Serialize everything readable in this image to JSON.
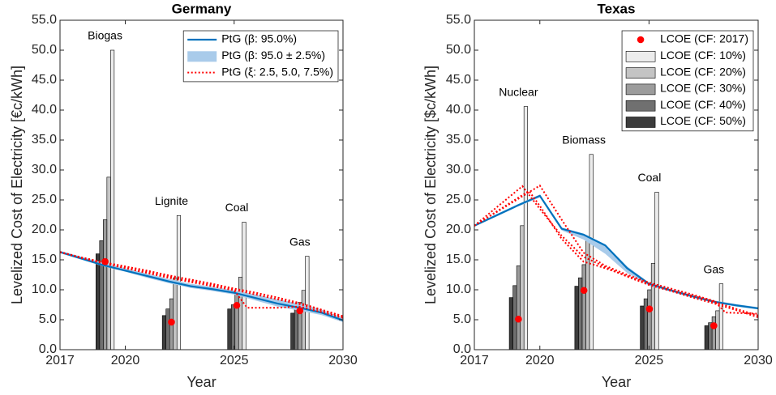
{
  "chart_data": [
    {
      "type": "combo",
      "title": "Germany",
      "xlabel": "Year",
      "ylabel": "Levelized Cost of Electricity [€c/kWh]",
      "xlim": [
        2017,
        2030
      ],
      "xticks": [
        2017,
        2020,
        2025,
        2030
      ],
      "ylim": [
        0,
        55
      ],
      "yticks": [
        {
          "value": 0,
          "label": "0.0"
        },
        {
          "value": 5,
          "label": "5.0"
        },
        {
          "value": 10,
          "label": "10.0"
        },
        {
          "value": 15,
          "label": "15.0"
        },
        {
          "value": 20,
          "label": "20.0"
        },
        {
          "value": 25,
          "label": "25.0"
        },
        {
          "value": 30,
          "label": "30.0"
        },
        {
          "value": 35,
          "label": "35.0"
        },
        {
          "value": 40,
          "label": "40.0"
        },
        {
          "value": 45,
          "label": "45.0"
        },
        {
          "value": 50,
          "label": "50.0"
        },
        {
          "value": 55,
          "label": "55.0"
        }
      ],
      "legend": "upper right",
      "groups": {
        "labels": [
          "Biogas",
          "Lignite",
          "Coal",
          "Gas"
        ],
        "x": [
          2018.65,
          2021.7,
          2024.7,
          2027.6
        ]
      },
      "dots": {
        "color": "#ff0000",
        "values": [
          14.7,
          4.6,
          7.4,
          6.5
        ]
      },
      "bar_series": [
        {
          "color": "#ececec",
          "values": [
            50.0,
            22.4,
            21.3,
            15.6
          ]
        },
        {
          "color": "#c4c4c4",
          "values": [
            28.8,
            12.0,
            12.1,
            9.9
          ]
        },
        {
          "color": "#9c9c9c",
          "values": [
            21.7,
            8.5,
            9.5,
            7.9
          ]
        },
        {
          "color": "#707070",
          "values": [
            18.2,
            6.8,
            7.5,
            7.0
          ]
        },
        {
          "color": "#3c3c3c",
          "values": [
            16.0,
            5.7,
            6.8,
            6.1
          ]
        }
      ],
      "line": {
        "name": "PtG (β: 95.0%)",
        "color": "#0072bd",
        "x": [
          2017,
          2018,
          2019,
          2020,
          2021,
          2022,
          2023,
          2024,
          2025,
          2026,
          2027,
          2028,
          2029,
          2030
        ],
        "values": [
          16.3,
          15.2,
          14.1,
          13.2,
          12.3,
          11.4,
          10.6,
          10.1,
          9.5,
          8.6,
          7.7,
          7.0,
          6.2,
          4.9
        ]
      },
      "band": {
        "name": "PtG (β: 95.0 ± 2.5%)",
        "color": "#a9cbea",
        "x": [
          2017,
          2018,
          2019,
          2020,
          2021,
          2022,
          2023,
          2024,
          2025,
          2026,
          2027,
          2028,
          2029,
          2030
        ],
        "lower": [
          16.1,
          15.0,
          13.9,
          13.0,
          12.0,
          11.1,
          10.3,
          9.8,
          9.2,
          8.2,
          7.2,
          6.5,
          5.8,
          4.6
        ],
        "upper": [
          16.5,
          15.5,
          14.5,
          13.6,
          12.7,
          11.8,
          11.0,
          10.5,
          9.9,
          9.2,
          8.4,
          7.7,
          6.7,
          5.3
        ]
      },
      "scenarios": {
        "name": "PtG (ξ: 2.5, 5.0, 7.5%)",
        "color": "#ff0000",
        "lines": [
          {
            "x": [
              2017,
              2018,
              2019,
              2020,
              2021,
              2022,
              2023,
              2024,
              2025,
              2026,
              2027,
              2028,
              2029,
              2030
            ],
            "values": [
              16.3,
              15.4,
              14.6,
              13.9,
              13.2,
              12.4,
              11.7,
              11.0,
              10.2,
              9.5,
              8.7,
              7.8,
              6.7,
              5.6
            ]
          },
          {
            "x": [
              2017,
              2018,
              2019,
              2020,
              2021,
              2022,
              2023,
              2024,
              2025,
              2026,
              2027,
              2028,
              2029,
              2030
            ],
            "values": [
              16.3,
              15.3,
              14.5,
              13.8,
              13.0,
              12.2,
              11.5,
              10.8,
              10.0,
              9.2,
              8.4,
              7.6,
              6.6,
              5.5
            ]
          },
          {
            "x": [
              2017,
              2018,
              2019,
              2020,
              2021,
              2022,
              2023,
              2024,
              2025,
              2025.6,
              2026,
              2027,
              2028,
              2029,
              2030
            ],
            "values": [
              16.3,
              15.3,
              14.4,
              13.6,
              12.8,
              12.0,
              11.3,
              10.6,
              9.9,
              7.0,
              7.0,
              7.0,
              7.2,
              6.3,
              5.3
            ]
          }
        ]
      }
    },
    {
      "type": "combo",
      "title": "Texas",
      "xlabel": "Year",
      "ylabel": "Levelized Cost of Electricity [$c/kWh]",
      "xlim": [
        2017,
        2030
      ],
      "xticks": [
        2017,
        2020,
        2025,
        2030
      ],
      "ylim": [
        0,
        55
      ],
      "yticks": [
        {
          "value": 0,
          "label": "0.0"
        },
        {
          "value": 5,
          "label": "5.0"
        },
        {
          "value": 10,
          "label": "10.0"
        },
        {
          "value": 15,
          "label": "15.0"
        },
        {
          "value": 20,
          "label": "20.0"
        },
        {
          "value": 25,
          "label": "25.0"
        },
        {
          "value": 30,
          "label": "30.0"
        },
        {
          "value": 35,
          "label": "35.0"
        },
        {
          "value": 40,
          "label": "40.0"
        },
        {
          "value": 45,
          "label": "45.0"
        },
        {
          "value": 50,
          "label": "50.0"
        },
        {
          "value": 55,
          "label": "55.0"
        }
      ],
      "legend": "upper right",
      "groups": {
        "labels": [
          "Nuclear",
          "Biomass",
          "Coal",
          "Gas"
        ],
        "x": [
          2018.6,
          2021.6,
          2024.6,
          2027.55
        ]
      },
      "dots": {
        "name": "LCOE (CF: 2017)",
        "color": "#ff0000",
        "values": [
          5.1,
          9.9,
          6.8,
          4.0
        ]
      },
      "bar_series": [
        {
          "name": "LCOE (CF: 10%)",
          "color": "#ececec",
          "values": [
            40.6,
            32.6,
            26.3,
            11.0
          ]
        },
        {
          "name": "LCOE (CF: 20%)",
          "color": "#c4c4c4",
          "values": [
            20.7,
            18.9,
            14.4,
            6.5
          ]
        },
        {
          "name": "LCOE (CF: 30%)",
          "color": "#9c9c9c",
          "values": [
            14.0,
            14.2,
            10.0,
            5.5
          ]
        },
        {
          "name": "LCOE (CF: 40%)",
          "color": "#707070",
          "values": [
            10.7,
            12.0,
            8.5,
            4.5
          ]
        },
        {
          "name": "LCOE (CF: 50%)",
          "color": "#3c3c3c",
          "values": [
            8.7,
            10.6,
            7.3,
            4.0
          ]
        }
      ],
      "line": {
        "color": "#0072bd",
        "x": [
          2017,
          2018,
          2019,
          2020,
          2021,
          2022,
          2023,
          2024,
          2025,
          2026,
          2027,
          2028,
          2029,
          2030
        ],
        "values": [
          20.7,
          22.4,
          24.1,
          25.7,
          20.2,
          19.2,
          17.4,
          13.6,
          11.0,
          9.9,
          8.9,
          8.0,
          7.4,
          6.9
        ]
      },
      "band": {
        "color": "#a9cbea",
        "x": [
          2017,
          2018,
          2019,
          2020,
          2021,
          2022,
          2023,
          2024,
          2025,
          2026,
          2027,
          2028,
          2029,
          2030
        ],
        "lower": [
          20.6,
          22.2,
          23.9,
          25.4,
          19.9,
          18.4,
          16.0,
          12.8,
          10.7,
          9.7,
          8.7,
          7.8,
          7.2,
          6.7
        ],
        "upper": [
          20.8,
          22.6,
          24.3,
          25.9,
          20.4,
          19.4,
          17.6,
          13.9,
          11.2,
          10.1,
          9.1,
          8.2,
          7.6,
          7.1
        ]
      },
      "scenarios": {
        "color": "#ff0000",
        "lines": [
          {
            "x": [
              2017,
              2019.2,
              2020,
              2021,
              2022,
              2023,
              2024,
              2025,
              2026,
              2027,
              2028,
              2029,
              2030
            ],
            "values": [
              20.7,
              27.3,
              23.5,
              19.0,
              15.5,
              13.8,
              12.2,
              10.8,
              9.8,
              8.7,
              7.7,
              6.6,
              5.4
            ]
          },
          {
            "x": [
              2017,
              2019.5,
              2020,
              2021,
              2022,
              2023,
              2024,
              2025,
              2026,
              2027,
              2028,
              2029,
              2030
            ],
            "values": [
              20.7,
              26.5,
              24.0,
              18.5,
              14.7,
              13.6,
              12.3,
              11.0,
              9.9,
              9.0,
              8.0,
              6.8,
              5.7
            ]
          },
          {
            "x": [
              2017,
              2020,
              2021,
              2022,
              2023,
              2024,
              2025,
              2026,
              2027,
              2028,
              2028.5,
              2030
            ],
            "values": [
              20.7,
              27.4,
              21.7,
              16.2,
              14.0,
              12.5,
              11.2,
              10.2,
              9.2,
              8.1,
              6.2,
              6.0
            ]
          }
        ]
      }
    }
  ]
}
